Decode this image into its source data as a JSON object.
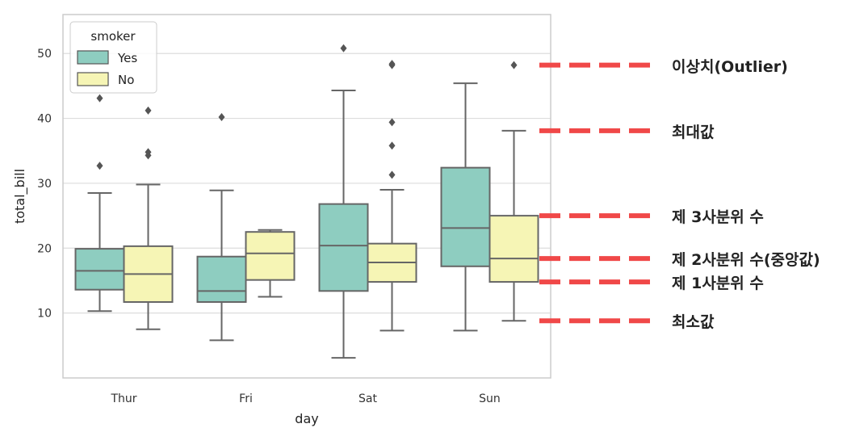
{
  "chart_data": {
    "type": "box",
    "xlabel": "day",
    "ylabel": "total_bill",
    "ylim": [
      0,
      56
    ],
    "yticks": [
      10,
      20,
      30,
      40,
      50
    ],
    "categories": [
      "Thur",
      "Fri",
      "Sat",
      "Sun"
    ],
    "legend": {
      "title": "smoker",
      "position": "top-left"
    },
    "grid": true,
    "series": [
      {
        "name": "Yes",
        "color": "#8ecdc0",
        "boxes": [
          {
            "min": 10.3,
            "q1": 13.6,
            "median": 16.5,
            "q3": 19.9,
            "max": 28.5,
            "outliers": [
              32.7,
              43.1
            ]
          },
          {
            "min": 5.8,
            "q1": 11.7,
            "median": 13.4,
            "q3": 18.7,
            "max": 28.9,
            "outliers": [
              40.2
            ]
          },
          {
            "min": 3.1,
            "q1": 13.4,
            "median": 20.4,
            "q3": 26.8,
            "max": 44.3,
            "outliers": [
              50.8
            ]
          },
          {
            "min": 7.3,
            "q1": 17.2,
            "median": 23.1,
            "q3": 32.4,
            "max": 45.4,
            "outliers": []
          }
        ]
      },
      {
        "name": "No",
        "color": "#f6f5b5",
        "boxes": [
          {
            "min": 7.5,
            "q1": 11.7,
            "median": 16.0,
            "q3": 20.3,
            "max": 29.8,
            "outliers": [
              34.3,
              34.8,
              41.2
            ]
          },
          {
            "min": 12.5,
            "q1": 15.1,
            "median": 19.2,
            "q3": 22.5,
            "max": 22.8,
            "outliers": []
          },
          {
            "min": 7.3,
            "q1": 14.8,
            "median": 17.8,
            "q3": 20.7,
            "max": 29.0,
            "outliers": [
              31.3,
              35.8,
              39.4,
              48.2,
              48.4
            ]
          },
          {
            "min": 8.8,
            "q1": 14.8,
            "median": 18.4,
            "q3": 25.0,
            "max": 38.1,
            "outliers": [
              48.2
            ]
          }
        ]
      }
    ],
    "annotations": [
      {
        "label": "이상치(Outlier)",
        "value": 48.2
      },
      {
        "label": "최대값",
        "value": 38.1
      },
      {
        "label": "제 3사분위 수",
        "value": 25.0
      },
      {
        "label": "제 2사분위 수(중앙값)",
        "value": 18.4
      },
      {
        "label": "제 1사분위 수",
        "value": 14.8
      },
      {
        "label": "최소값",
        "value": 8.8
      }
    ],
    "annotation_line_color": "#f04848"
  }
}
